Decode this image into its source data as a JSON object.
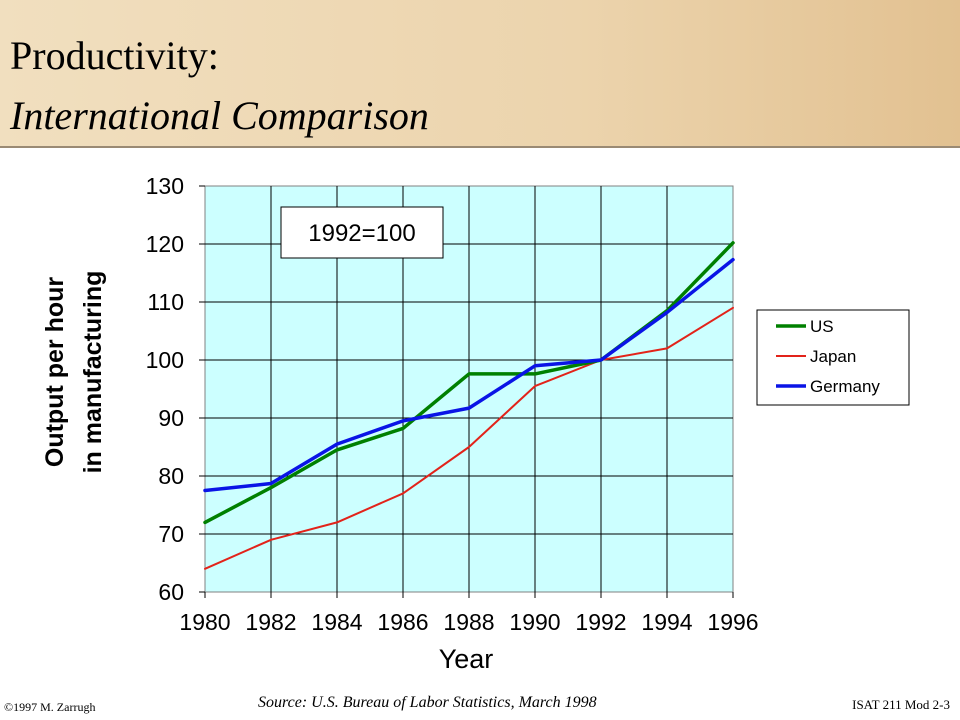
{
  "slide": {
    "title_line1": "Productivity:",
    "title_line2": "International Comparison",
    "copyright_symbol": "©",
    "copyright": "1997 M. Zarrugh",
    "source": "Source: U.S. Bureau of Labor Statistics, March 1998",
    "course": "ISAT 211 Mod 2-3"
  },
  "colors": {
    "plot_background": "#ccffff",
    "US": "#008000",
    "Japan": "#e2231a",
    "Germany": "#0a14e6",
    "header_left": "#f1dfbf",
    "header_right": "#e2c191"
  },
  "chart_data": {
    "type": "line",
    "title": "",
    "annotation": "1992=100",
    "xlabel": "Year",
    "ylabel_lines": [
      "Output per hour",
      "in manufacturing"
    ],
    "x": [
      1980,
      1982,
      1984,
      1986,
      1988,
      1990,
      1992,
      1994,
      1996
    ],
    "x_ticks": [
      "1980",
      "1982",
      "1984",
      "1986",
      "1988",
      "1990",
      "1992",
      "1994",
      "1996"
    ],
    "xlim": [
      1980,
      1996
    ],
    "ylim": [
      60,
      130
    ],
    "y_ticks": [
      "60",
      "70",
      "80",
      "90",
      "100",
      "110",
      "120",
      "130"
    ],
    "grid": true,
    "legend_position": "right",
    "series": [
      {
        "name": "US",
        "values": [
          72,
          78,
          84.5,
          88.2,
          97.6,
          97.6,
          100,
          108.5,
          120.2
        ]
      },
      {
        "name": "Japan",
        "values": [
          64,
          69,
          72,
          77,
          85,
          95.5,
          100,
          102,
          109
        ]
      },
      {
        "name": "Germany",
        "values": [
          77.5,
          78.7,
          85.5,
          89.5,
          91.7,
          99,
          100,
          108.2,
          117.3
        ]
      }
    ]
  }
}
